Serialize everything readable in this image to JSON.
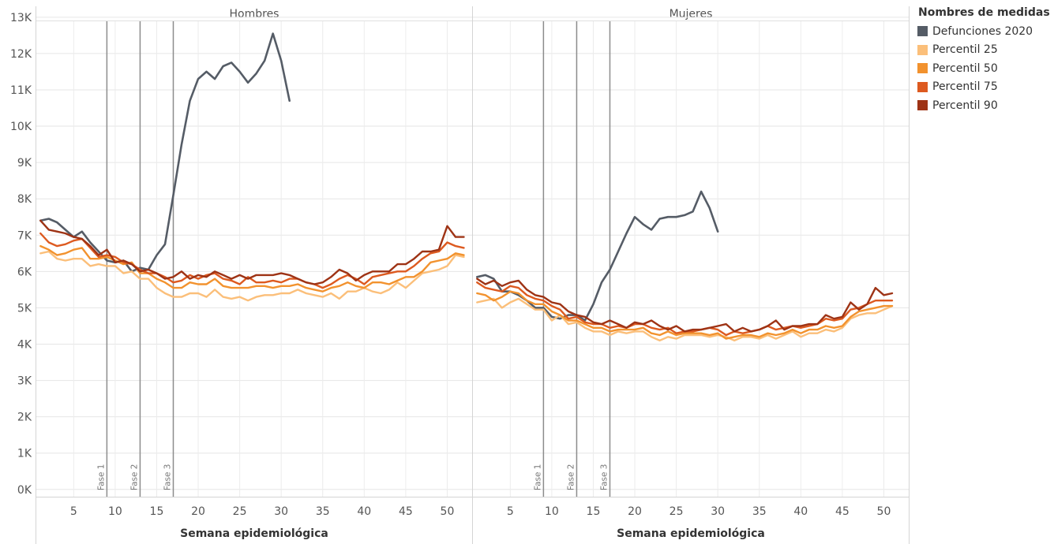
{
  "chart_data": {
    "type": "line",
    "xlabel": "Semana epidemiológica",
    "x_ticks": [
      5,
      10,
      15,
      20,
      25,
      30,
      35,
      40,
      45,
      50
    ],
    "y_ticks": [
      "0K",
      "1K",
      "2K",
      "3K",
      "4K",
      "5K",
      "6K",
      "7K",
      "8K",
      "9K",
      "10K",
      "11K",
      "12K",
      "13K"
    ],
    "xlim": [
      0.5,
      53
    ],
    "ylim": [
      -200,
      13300
    ],
    "grid": true,
    "legend_position": "right",
    "legend_title": "Nombres de medidas",
    "phase_lines": [
      {
        "label": "Fase 1",
        "week": 9
      },
      {
        "label": "Fase 2",
        "week": 13
      },
      {
        "label": "Fase 3",
        "week": 17
      }
    ],
    "series_styles": [
      {
        "name": "Defunciones 2020",
        "color": "#555c66"
      },
      {
        "name": "Percentil 25",
        "color": "#fbbf7a"
      },
      {
        "name": "Percentil 50",
        "color": "#f2922e"
      },
      {
        "name": "Percentil 75",
        "color": "#dd5a20"
      },
      {
        "name": "Percentil 90",
        "color": "#9e3315"
      }
    ],
    "panels": [
      {
        "title": "Hombres",
        "series": [
          {
            "name": "Defunciones 2020",
            "values": [
              7400,
              7450,
              7350,
              7150,
              6950,
              7100,
              6800,
              6550,
              6300,
              6250,
              6300,
              6000,
              6100,
              6050,
              6450,
              6750,
              8100,
              9500,
              10700,
              11300,
              11500,
              11300,
              11650,
              11750,
              11500,
              11200,
              11450,
              11800,
              12550,
              11800,
              10700
            ]
          },
          {
            "name": "Percentil 25",
            "values": [
              6500,
              6550,
              6350,
              6300,
              6350,
              6350,
              6150,
              6200,
              6150,
              6150,
              5950,
              6000,
              5800,
              5800,
              5550,
              5400,
              5300,
              5300,
              5400,
              5400,
              5300,
              5500,
              5300,
              5250,
              5300,
              5200,
              5300,
              5350,
              5350,
              5400,
              5400,
              5500,
              5400,
              5350,
              5300,
              5400,
              5250,
              5450,
              5450,
              5550,
              5450,
              5400,
              5500,
              5700,
              5550,
              5750,
              5950,
              6000,
              6050,
              6150,
              6450,
              6400
            ]
          },
          {
            "name": "Percentil 50",
            "values": [
              6700,
              6600,
              6450,
              6500,
              6600,
              6650,
              6350,
              6350,
              6400,
              6300,
              6200,
              6250,
              5950,
              5950,
              5800,
              5700,
              5550,
              5550,
              5700,
              5650,
              5650,
              5800,
              5600,
              5550,
              5550,
              5550,
              5600,
              5600,
              5550,
              5600,
              5600,
              5650,
              5550,
              5500,
              5450,
              5550,
              5600,
              5700,
              5600,
              5550,
              5700,
              5700,
              5650,
              5750,
              5850,
              5850,
              6000,
              6250,
              6300,
              6350,
              6500,
              6450
            ]
          },
          {
            "name": "Percentil 75",
            "values": [
              7050,
              6800,
              6700,
              6750,
              6850,
              6900,
              6650,
              6400,
              6450,
              6400,
              6250,
              6200,
              6050,
              5950,
              5950,
              5850,
              5700,
              5750,
              5900,
              5800,
              5900,
              5950,
              5800,
              5750,
              5650,
              5850,
              5700,
              5700,
              5750,
              5700,
              5800,
              5800,
              5700,
              5650,
              5550,
              5650,
              5800,
              5900,
              5800,
              5650,
              5850,
              5900,
              5950,
              6000,
              6000,
              6150,
              6350,
              6500,
              6550,
              6800,
              6700,
              6650
            ]
          },
          {
            "name": "Percentil 90",
            "values": [
              7400,
              7150,
              7100,
              7050,
              6950,
              6900,
              6700,
              6450,
              6600,
              6250,
              6300,
              6200,
              6000,
              6050,
              5950,
              5800,
              5850,
              6000,
              5800,
              5900,
              5850,
              6000,
              5900,
              5800,
              5900,
              5800,
              5900,
              5900,
              5900,
              5950,
              5900,
              5800,
              5700,
              5650,
              5700,
              5850,
              6050,
              5950,
              5750,
              5900,
              6000,
              6000,
              6000,
              6200,
              6200,
              6350,
              6550,
              6550,
              6600,
              7250,
              6950,
              6950
            ]
          }
        ]
      },
      {
        "title": "Mujeres",
        "series": [
          {
            "name": "Defunciones 2020",
            "values": [
              5850,
              5900,
              5800,
              5450,
              5450,
              5350,
              5200,
              5000,
              5000,
              4750,
              4700,
              4800,
              4800,
              4650,
              5100,
              5700,
              6050,
              6550,
              7050,
              7500,
              7300,
              7150,
              7450,
              7500,
              7500,
              7550,
              7650,
              8200,
              7750,
              7100
            ]
          },
          {
            "name": "Percentil 25",
            "values": [
              5150,
              5200,
              5250,
              5000,
              5150,
              5250,
              5100,
              4950,
              4950,
              4650,
              4800,
              4550,
              4600,
              4450,
              4350,
              4350,
              4250,
              4350,
              4300,
              4350,
              4350,
              4200,
              4100,
              4200,
              4150,
              4250,
              4250,
              4250,
              4200,
              4250,
              4200,
              4100,
              4200,
              4200,
              4150,
              4250,
              4150,
              4250,
              4350,
              4200,
              4300,
              4300,
              4400,
              4350,
              4450,
              4700,
              4800,
              4850,
              4850,
              4950,
              5050
            ]
          },
          {
            "name": "Percentil 50",
            "values": [
              5400,
              5350,
              5200,
              5300,
              5450,
              5400,
              5200,
              5100,
              5100,
              4900,
              4800,
              4650,
              4650,
              4550,
              4450,
              4450,
              4350,
              4400,
              4400,
              4400,
              4450,
              4300,
              4250,
              4350,
              4250,
              4300,
              4300,
              4300,
              4250,
              4300,
              4150,
              4200,
              4250,
              4250,
              4200,
              4300,
              4250,
              4300,
              4400,
              4300,
              4400,
              4400,
              4500,
              4450,
              4500,
              4750,
              4900,
              4950,
              5000,
              5050,
              5050
            ]
          },
          {
            "name": "Percentil 75",
            "values": [
              5700,
              5550,
              5500,
              5450,
              5600,
              5550,
              5350,
              5250,
              5200,
              5050,
              4950,
              4700,
              4750,
              4600,
              4550,
              4550,
              4450,
              4500,
              4450,
              4550,
              4550,
              4450,
              4400,
              4450,
              4300,
              4350,
              4350,
              4400,
              4450,
              4400,
              4250,
              4350,
              4300,
              4350,
              4400,
              4500,
              4400,
              4450,
              4500,
              4450,
              4500,
              4550,
              4700,
              4650,
              4700,
              4950,
              5000,
              5100,
              5200,
              5200,
              5200
            ]
          },
          {
            "name": "Percentil 90",
            "values": [
              5800,
              5650,
              5750,
              5600,
              5700,
              5750,
              5500,
              5350,
              5300,
              5150,
              5100,
              4900,
              4800,
              4750,
              4600,
              4550,
              4650,
              4550,
              4450,
              4600,
              4550,
              4650,
              4500,
              4400,
              4500,
              4350,
              4400,
              4400,
              4450,
              4500,
              4550,
              4350,
              4450,
              4350,
              4400,
              4500,
              4650,
              4400,
              4500,
              4500,
              4550,
              4550,
              4800,
              4700,
              4750,
              5150,
              4950,
              5100,
              5550,
              5350,
              5400
            ]
          }
        ]
      }
    ]
  }
}
